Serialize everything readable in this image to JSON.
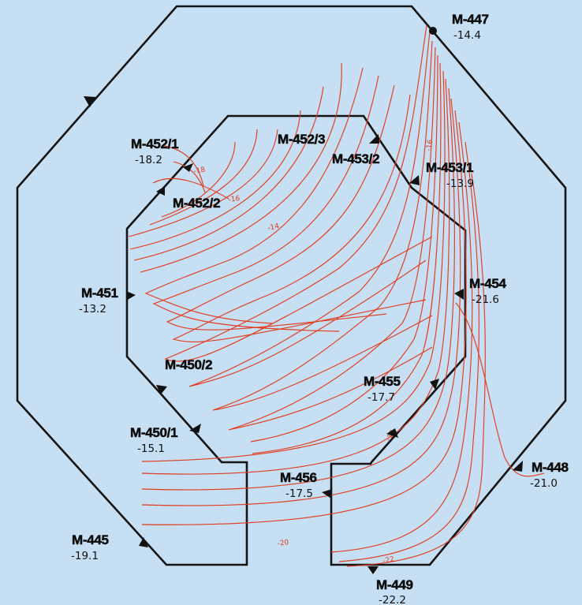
{
  "points": [
    {
      "id": "M-447",
      "value": "-14.4"
    },
    {
      "id": "M-452/1",
      "value": "-18.2"
    },
    {
      "id": "M-452/3",
      "value": ""
    },
    {
      "id": "M-453/2",
      "value": ""
    },
    {
      "id": "M-453/1",
      "value": "-13.9"
    },
    {
      "id": "M-452/2",
      "value": ""
    },
    {
      "id": "M-451",
      "value": "-13.2"
    },
    {
      "id": "M-454",
      "value": "-21.6"
    },
    {
      "id": "M-450/2",
      "value": ""
    },
    {
      "id": "M-455",
      "value": "-17.7"
    },
    {
      "id": "M-450/1",
      "value": "-15.1"
    },
    {
      "id": "M-448",
      "value": "-21.0"
    },
    {
      "id": "M-456",
      "value": "-17.5"
    },
    {
      "id": "M-445",
      "value": "-19.1"
    },
    {
      "id": "M-449",
      "value": "-22.2"
    }
  ],
  "contour_labels": [
    "-18",
    "-16",
    "-14",
    "-16",
    "-18",
    "-20",
    "-22"
  ],
  "colors": {
    "background": "#c6dff2",
    "outline": "#141414",
    "contour": "#e23b1e"
  }
}
